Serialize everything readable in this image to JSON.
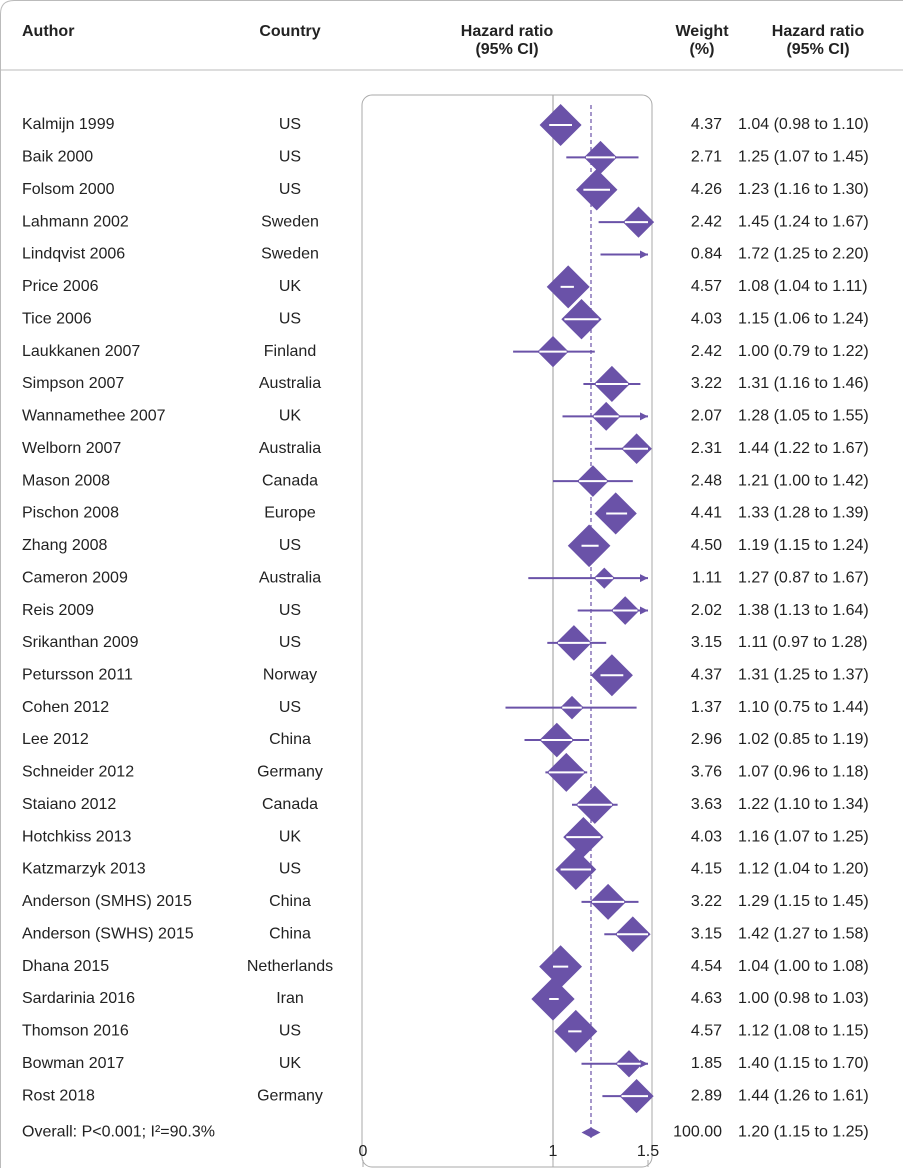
{
  "chart_data": {
    "type": "forest",
    "headers": {
      "author": "Author",
      "country": "Country",
      "plot": [
        "Hazard ratio",
        "(95% CI)"
      ],
      "weight": [
        "Weight",
        "(%)"
      ],
      "ci": [
        "Hazard ratio",
        "(95% CI)"
      ]
    },
    "color": "#6a52a8",
    "xlim": [
      0,
      1.5
    ],
    "xticks": [
      0,
      1,
      1.5
    ],
    "null_line": 1,
    "studies": [
      {
        "author": "Kalmijn 1999",
        "country": "US",
        "hr": 1.04,
        "lo": 0.98,
        "hi": 1.1,
        "weight": 4.37,
        "weight_label": "4.37",
        "ci_label": "1.04 (0.98 to 1.10)"
      },
      {
        "author": "Baik 2000",
        "country": "US",
        "hr": 1.25,
        "lo": 1.07,
        "hi": 1.45,
        "weight": 2.71,
        "weight_label": "2.71",
        "ci_label": "1.25 (1.07 to 1.45)"
      },
      {
        "author": "Folsom 2000",
        "country": "US",
        "hr": 1.23,
        "lo": 1.16,
        "hi": 1.3,
        "weight": 4.26,
        "weight_label": "4.26",
        "ci_label": "1.23 (1.16 to 1.30)"
      },
      {
        "author": "Lahmann 2002",
        "country": "Sweden",
        "hr": 1.45,
        "lo": 1.24,
        "hi": 1.67,
        "weight": 2.42,
        "weight_label": "2.42",
        "ci_label": "1.45 (1.24 to 1.67)"
      },
      {
        "author": "Lindqvist 2006",
        "country": "Sweden",
        "hr": 1.72,
        "lo": 1.25,
        "hi": 2.2,
        "weight": 0.84,
        "weight_label": "0.84",
        "ci_label": "1.72 (1.25 to 2.20)"
      },
      {
        "author": "Price 2006",
        "country": "UK",
        "hr": 1.08,
        "lo": 1.04,
        "hi": 1.11,
        "weight": 4.57,
        "weight_label": "4.57",
        "ci_label": "1.08 (1.04 to 1.11)"
      },
      {
        "author": "Tice 2006",
        "country": "US",
        "hr": 1.15,
        "lo": 1.06,
        "hi": 1.24,
        "weight": 4.03,
        "weight_label": "4.03",
        "ci_label": "1.15 (1.06 to 1.24)"
      },
      {
        "author": "Laukkanen 2007",
        "country": "Finland",
        "hr": 1.0,
        "lo": 0.79,
        "hi": 1.22,
        "weight": 2.42,
        "weight_label": "2.42",
        "ci_label": "1.00 (0.79 to 1.22)"
      },
      {
        "author": "Simpson 2007",
        "country": "Australia",
        "hr": 1.31,
        "lo": 1.16,
        "hi": 1.46,
        "weight": 3.22,
        "weight_label": "3.22",
        "ci_label": "1.31 (1.16 to 1.46)"
      },
      {
        "author": "Wannamethee 2007",
        "country": "UK",
        "hr": 1.28,
        "lo": 1.05,
        "hi": 1.55,
        "weight": 2.07,
        "weight_label": "2.07",
        "ci_label": "1.28 (1.05 to 1.55)"
      },
      {
        "author": "Welborn 2007",
        "country": "Australia",
        "hr": 1.44,
        "lo": 1.22,
        "hi": 1.67,
        "weight": 2.31,
        "weight_label": "2.31",
        "ci_label": "1.44 (1.22 to 1.67)"
      },
      {
        "author": "Mason 2008",
        "country": "Canada",
        "hr": 1.21,
        "lo": 1.0,
        "hi": 1.42,
        "weight": 2.48,
        "weight_label": "2.48",
        "ci_label": "1.21 (1.00 to 1.42)"
      },
      {
        "author": "Pischon 2008",
        "country": "Europe",
        "hr": 1.33,
        "lo": 1.28,
        "hi": 1.39,
        "weight": 4.41,
        "weight_label": "4.41",
        "ci_label": "1.33 (1.28 to 1.39)"
      },
      {
        "author": "Zhang 2008",
        "country": "US",
        "hr": 1.19,
        "lo": 1.15,
        "hi": 1.24,
        "weight": 4.5,
        "weight_label": "4.50",
        "ci_label": "1.19 (1.15 to 1.24)"
      },
      {
        "author": "Cameron 2009",
        "country": "Australia",
        "hr": 1.27,
        "lo": 0.87,
        "hi": 1.67,
        "weight": 1.11,
        "weight_label": "1.11",
        "ci_label": "1.27 (0.87 to 1.67)"
      },
      {
        "author": "Reis 2009",
        "country": "US",
        "hr": 1.38,
        "lo": 1.13,
        "hi": 1.64,
        "weight": 2.02,
        "weight_label": "2.02",
        "ci_label": "1.38 (1.13 to 1.64)"
      },
      {
        "author": "Srikanthan 2009",
        "country": "US",
        "hr": 1.11,
        "lo": 0.97,
        "hi": 1.28,
        "weight": 3.15,
        "weight_label": "3.15",
        "ci_label": "1.11 (0.97 to 1.28)"
      },
      {
        "author": "Petursson 2011",
        "country": "Norway",
        "hr": 1.31,
        "lo": 1.25,
        "hi": 1.37,
        "weight": 4.37,
        "weight_label": "4.37",
        "ci_label": "1.31 (1.25 to 1.37)"
      },
      {
        "author": "Cohen 2012",
        "country": "US",
        "hr": 1.1,
        "lo": 0.75,
        "hi": 1.44,
        "weight": 1.37,
        "weight_label": "1.37",
        "ci_label": "1.10 (0.75 to 1.44)"
      },
      {
        "author": "Lee 2012",
        "country": "China",
        "hr": 1.02,
        "lo": 0.85,
        "hi": 1.19,
        "weight": 2.96,
        "weight_label": "2.96",
        "ci_label": "1.02 (0.85 to 1.19)"
      },
      {
        "author": "Schneider 2012",
        "country": "Germany",
        "hr": 1.07,
        "lo": 0.96,
        "hi": 1.18,
        "weight": 3.76,
        "weight_label": "3.76",
        "ci_label": "1.07 (0.96 to 1.18)"
      },
      {
        "author": "Staiano 2012",
        "country": "Canada",
        "hr": 1.22,
        "lo": 1.1,
        "hi": 1.34,
        "weight": 3.63,
        "weight_label": "3.63",
        "ci_label": "1.22 (1.10 to 1.34)"
      },
      {
        "author": "Hotchkiss 2013",
        "country": "UK",
        "hr": 1.16,
        "lo": 1.07,
        "hi": 1.25,
        "weight": 4.03,
        "weight_label": "4.03",
        "ci_label": "1.16 (1.07 to 1.25)"
      },
      {
        "author": "Katzmarzyk 2013",
        "country": "US",
        "hr": 1.12,
        "lo": 1.04,
        "hi": 1.2,
        "weight": 4.15,
        "weight_label": "4.15",
        "ci_label": "1.12 (1.04 to 1.20)"
      },
      {
        "author": "Anderson (SMHS) 2015",
        "country": "China",
        "hr": 1.29,
        "lo": 1.15,
        "hi": 1.45,
        "weight": 3.22,
        "weight_label": "3.22",
        "ci_label": "1.29 (1.15 to 1.45)"
      },
      {
        "author": "Anderson (SWHS) 2015",
        "country": "China",
        "hr": 1.42,
        "lo": 1.27,
        "hi": 1.58,
        "weight": 3.15,
        "weight_label": "3.15",
        "ci_label": "1.42 (1.27 to 1.58)"
      },
      {
        "author": "Dhana 2015",
        "country": "Netherlands",
        "hr": 1.04,
        "lo": 1.0,
        "hi": 1.08,
        "weight": 4.54,
        "weight_label": "4.54",
        "ci_label": "1.04 (1.00 to 1.08)"
      },
      {
        "author": "Sardarinia 2016",
        "country": "Iran",
        "hr": 1.0,
        "lo": 0.98,
        "hi": 1.03,
        "weight": 4.63,
        "weight_label": "4.63",
        "ci_label": "1.00 (0.98 to 1.03)"
      },
      {
        "author": "Thomson 2016",
        "country": "US",
        "hr": 1.12,
        "lo": 1.08,
        "hi": 1.15,
        "weight": 4.57,
        "weight_label": "4.57",
        "ci_label": "1.12 (1.08 to 1.15)"
      },
      {
        "author": "Bowman 2017",
        "country": "UK",
        "hr": 1.4,
        "lo": 1.15,
        "hi": 1.7,
        "weight": 1.85,
        "weight_label": "1.85",
        "ci_label": "1.40 (1.15 to 1.70)"
      },
      {
        "author": "Rost 2018",
        "country": "Germany",
        "hr": 1.44,
        "lo": 1.26,
        "hi": 1.61,
        "weight": 2.89,
        "weight_label": "2.89",
        "ci_label": "1.44 (1.26 to 1.61)"
      }
    ],
    "overall": {
      "label": "Overall: P<0.001; I²=90.3%",
      "hr": 1.2,
      "lo": 1.15,
      "hi": 1.25,
      "weight": 100,
      "weight_label": "100.00",
      "ci_label": "1.20 (1.15 to 1.25)"
    }
  }
}
